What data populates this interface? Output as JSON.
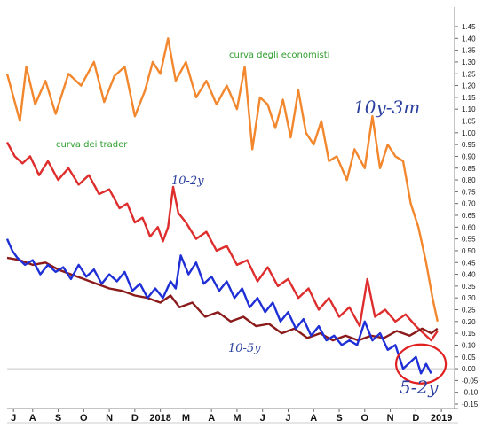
{
  "chart_data": {
    "type": "line",
    "title": "",
    "xlabel": "",
    "ylabel": "",
    "ylim": [
      -0.15,
      1.45
    ],
    "y_ticks": [
      -0.15,
      -0.1,
      -0.05,
      0.0,
      0.05,
      0.1,
      0.15,
      0.2,
      0.25,
      0.3,
      0.35,
      0.4,
      0.45,
      0.5,
      0.55,
      0.6,
      0.65,
      0.7,
      0.75,
      0.8,
      0.85,
      0.9,
      0.95,
      1.0,
      1.05,
      1.1,
      1.15,
      1.2,
      1.25,
      1.3,
      1.35,
      1.4,
      1.45
    ],
    "y_tick_labels": [
      "-0.15",
      "-0.10",
      "-0.05",
      "0.00",
      "0.05",
      "0.10",
      "0.15",
      "0.20",
      "0.25",
      "0.30",
      "0.35",
      "0.40",
      "0.45",
      "0.50",
      "0.55",
      "0.60",
      "0.65",
      "0.70",
      "0.75",
      "0.80",
      "0.85",
      "0.90",
      "0.95",
      "1.00",
      "1.05",
      "1.10",
      "1.15",
      "1.20",
      "1.25",
      "1.30",
      "1.35",
      "1.40",
      "1.45"
    ],
    "x_month_labels": [
      "J",
      "A",
      "S",
      "O",
      "N",
      "D",
      "2018",
      "M",
      "A",
      "M",
      "J",
      "J",
      "A",
      "S",
      "O",
      "N",
      "D",
      "2019"
    ],
    "x_month_positions": [
      0.5,
      2,
      4,
      6,
      8,
      10,
      12,
      14,
      16,
      18,
      20,
      22,
      24,
      26,
      28,
      30,
      32,
      34
    ],
    "x_range": [
      0,
      34.2
    ],
    "grid": false,
    "zero_line": 0.0,
    "series": [
      {
        "key": "10y-3m",
        "color": "#f2872e",
        "x": [
          0,
          1,
          1.5,
          2.2,
          3,
          3.8,
          4.8,
          5.8,
          6.8,
          7.6,
          8.4,
          9.2,
          10,
          10.8,
          11.4,
          12,
          12.6,
          13.2,
          14,
          14.8,
          15.6,
          16.4,
          17.2,
          18,
          18.6,
          19.2,
          19.8,
          20.4,
          21,
          21.6,
          22.2,
          22.8,
          23.4,
          24,
          24.6,
          25.2,
          25.8,
          26.6,
          27.2,
          28,
          28.6,
          29.2,
          29.8,
          30.4,
          31,
          31.6,
          32.2,
          32.8,
          33.3,
          33.7
        ],
        "y": [
          1.25,
          1.05,
          1.28,
          1.12,
          1.22,
          1.08,
          1.25,
          1.2,
          1.3,
          1.13,
          1.24,
          1.28,
          1.07,
          1.18,
          1.3,
          1.25,
          1.4,
          1.22,
          1.3,
          1.15,
          1.22,
          1.12,
          1.2,
          1.1,
          1.28,
          0.93,
          1.15,
          1.12,
          1.02,
          1.14,
          0.98,
          1.18,
          1.0,
          0.95,
          1.05,
          0.88,
          0.9,
          0.8,
          0.93,
          0.85,
          1.07,
          0.85,
          0.95,
          0.9,
          0.88,
          0.7,
          0.6,
          0.45,
          0.3,
          0.2
        ]
      },
      {
        "key": "10-2y",
        "color": "#de2d2d",
        "x": [
          0,
          0.6,
          1.2,
          1.8,
          2.5,
          3.2,
          4,
          4.8,
          5.6,
          6.4,
          7.2,
          8,
          8.8,
          9.4,
          10,
          10.6,
          11.2,
          11.8,
          12.2,
          12.6,
          13,
          13.4,
          14,
          14.8,
          15.6,
          16.4,
          17.2,
          18,
          18.8,
          19.6,
          20.4,
          21.2,
          22,
          22.8,
          23.6,
          24.4,
          25.2,
          26,
          26.8,
          27.6,
          28.2,
          28.8,
          29.6,
          30.4,
          31.2,
          32,
          32.6,
          33.2,
          33.7
        ],
        "y": [
          0.96,
          0.9,
          0.87,
          0.9,
          0.82,
          0.88,
          0.8,
          0.85,
          0.78,
          0.82,
          0.74,
          0.76,
          0.68,
          0.7,
          0.62,
          0.64,
          0.56,
          0.6,
          0.54,
          0.6,
          0.77,
          0.66,
          0.62,
          0.55,
          0.58,
          0.5,
          0.52,
          0.44,
          0.46,
          0.37,
          0.43,
          0.35,
          0.38,
          0.3,
          0.34,
          0.25,
          0.3,
          0.22,
          0.26,
          0.18,
          0.38,
          0.22,
          0.25,
          0.2,
          0.23,
          0.18,
          0.15,
          0.12,
          0.16
        ]
      },
      {
        "key": "10-5y",
        "color": "#8b1a1a",
        "x": [
          0,
          1,
          2,
          3,
          4,
          5,
          6,
          7,
          8,
          9,
          10,
          11,
          12,
          12.8,
          13.5,
          14.5,
          15.5,
          16.5,
          17.5,
          18.5,
          19.5,
          20.5,
          21.5,
          22.5,
          23.5,
          24.5,
          25.5,
          26.5,
          27.5,
          28.5,
          29.5,
          30.5,
          31.5,
          32.5,
          33.2,
          33.7
        ],
        "y": [
          0.47,
          0.46,
          0.44,
          0.45,
          0.42,
          0.4,
          0.38,
          0.36,
          0.34,
          0.33,
          0.31,
          0.3,
          0.28,
          0.31,
          0.26,
          0.28,
          0.22,
          0.24,
          0.2,
          0.22,
          0.18,
          0.19,
          0.15,
          0.17,
          0.13,
          0.15,
          0.12,
          0.14,
          0.12,
          0.14,
          0.13,
          0.16,
          0.14,
          0.17,
          0.15,
          0.17
        ]
      },
      {
        "key": "5-2y",
        "color": "#1f2fd6",
        "x": [
          0,
          0.4,
          0.8,
          1.4,
          2,
          2.6,
          3.2,
          3.8,
          4.4,
          5,
          5.6,
          6.2,
          6.8,
          7.4,
          8,
          8.6,
          9.2,
          9.8,
          10.4,
          11,
          11.6,
          12.2,
          12.8,
          13.2,
          13.6,
          14.2,
          14.8,
          15.4,
          16,
          16.6,
          17.2,
          17.8,
          18.4,
          19,
          19.6,
          20.2,
          20.8,
          21.4,
          22,
          22.6,
          23.2,
          23.8,
          24.4,
          25,
          25.6,
          26.2,
          26.8,
          27.4,
          28,
          28.6,
          29.2,
          29.8,
          30.4,
          31,
          31.6,
          32,
          32.4,
          32.8,
          33.2
        ],
        "y": [
          0.55,
          0.5,
          0.47,
          0.44,
          0.46,
          0.4,
          0.44,
          0.41,
          0.43,
          0.38,
          0.44,
          0.39,
          0.42,
          0.36,
          0.4,
          0.37,
          0.41,
          0.33,
          0.36,
          0.3,
          0.34,
          0.3,
          0.37,
          0.34,
          0.48,
          0.4,
          0.45,
          0.36,
          0.39,
          0.33,
          0.37,
          0.3,
          0.34,
          0.26,
          0.3,
          0.24,
          0.28,
          0.2,
          0.24,
          0.17,
          0.21,
          0.14,
          0.18,
          0.12,
          0.14,
          0.1,
          0.12,
          0.1,
          0.2,
          0.12,
          0.15,
          0.08,
          0.1,
          0.0,
          0.03,
          0.05,
          -0.02,
          0.02,
          -0.02
        ]
      }
    ],
    "annotations": [
      {
        "key": "curva-degli-economisti",
        "text": "curva degli economisti",
        "style": "green"
      },
      {
        "key": "curva-dei-trader",
        "text": "curva dei trader",
        "style": "green"
      },
      {
        "key": "label-10y-3m",
        "text": "10y-3m",
        "style": "blue-large"
      },
      {
        "key": "label-10-2y",
        "text": "10-2y",
        "style": "blue-small"
      },
      {
        "key": "label-10-5y",
        "text": "10-5y",
        "style": "blue-small"
      },
      {
        "key": "label-5-2y",
        "text": "5-2y",
        "style": "blue-large"
      }
    ],
    "highlight": {
      "shape": "circle",
      "color": "#e02020",
      "center_x": 32.4,
      "center_y": 0.02
    }
  }
}
